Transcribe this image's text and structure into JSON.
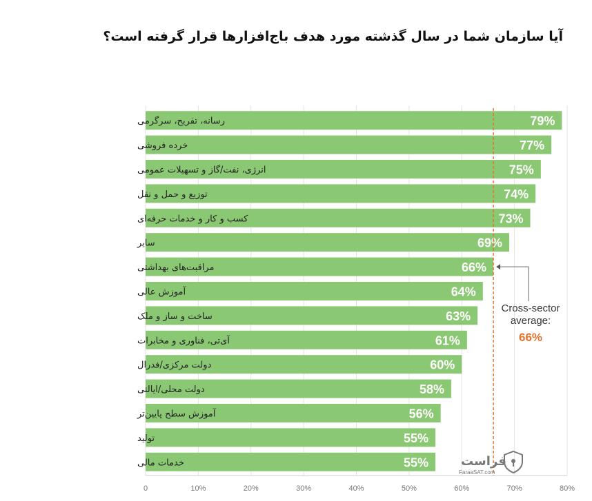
{
  "chart_data": {
    "type": "bar",
    "orientation": "horizontal",
    "title": "آیا سازمان شما در سال گذشته مورد هدف باج‌افزارها قرار گرفته است؟",
    "categories": [
      "رسانه، تفریح، سرگرمی",
      "خرده فروشی",
      "انرژی، نفت/گاز و تسهیلات عمومی",
      "توزیع و حمل و نقل",
      "کسب و کار و خدمات حرفه‌ای",
      "سایر",
      "مراقبت‌های بهداشتی",
      "آموزش عالی",
      "ساخت و ساز و ملک",
      "آی‌تی، فناوری و مخابرات",
      "دولت مرکزی/فدرال",
      "دولت محلی/ایالتی",
      "آموزش سطح پایین‌تر",
      "تولید",
      "خدمات مالی"
    ],
    "values": [
      79,
      77,
      75,
      74,
      73,
      69,
      66,
      64,
      63,
      61,
      60,
      58,
      56,
      55,
      55
    ],
    "value_labels": [
      "79%",
      "77%",
      "75%",
      "74%",
      "73%",
      "69%",
      "66%",
      "64%",
      "63%",
      "61%",
      "60%",
      "58%",
      "56%",
      "55%",
      "55%"
    ],
    "x_ticks": [
      "0",
      "10%",
      "20%",
      "30%",
      "40%",
      "50%",
      "60%",
      "70%",
      "80%"
    ],
    "xlim": [
      0,
      80
    ],
    "grid": true,
    "bar_color": "#8bc873",
    "reference_line": {
      "value": 66,
      "color": "#e2742c",
      "label_lines": [
        "Cross-sector",
        "average:"
      ],
      "value_label": "66%"
    }
  },
  "watermark": {
    "text": "فراست",
    "subtext": "FaraaSAT.com",
    "icon": "shield-icon"
  }
}
